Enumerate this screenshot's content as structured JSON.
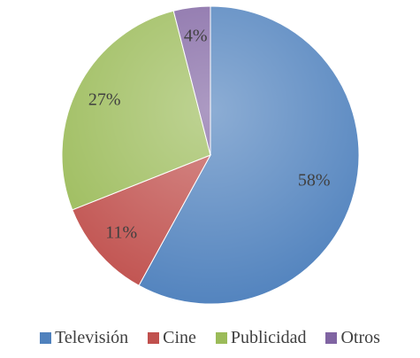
{
  "chart_data": {
    "type": "pie",
    "categories": [
      "Televisión",
      "Cine",
      "Publicidad",
      "Otros"
    ],
    "values": [
      58,
      11,
      27,
      4
    ],
    "value_labels": [
      "58%",
      "11%",
      "27%",
      "4%"
    ],
    "colors": [
      "#4f81bd",
      "#c0504d",
      "#9bbb59",
      "#8064a2"
    ],
    "legend": "bottom"
  }
}
